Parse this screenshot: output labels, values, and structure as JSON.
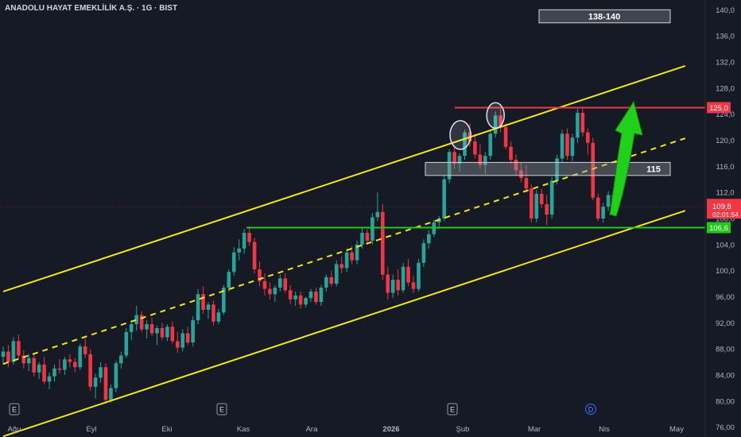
{
  "header": {
    "title": "ANADOLU HAYAT EMEKLİLİK A.Ş. · 1G · BIST"
  },
  "colors": {
    "background": "#161a25",
    "up": "#26a69a",
    "down": "#f23645",
    "channel": "#f5e616",
    "resistance": "#f23645",
    "support": "#22c81a",
    "arrow": "#21d01a",
    "box": "#d1d4dc",
    "axis_text": "#b2b5be"
  },
  "chart_data": {
    "type": "candlestick",
    "title": "ANADOLU HAYAT EMEKLİLİK A.Ş. · 1G · BIST",
    "y_axis": {
      "min": 74.5,
      "max": 141.5,
      "ticks": [
        "140,0",
        "136,0",
        "132,0",
        "128,0",
        "124,0",
        "120,0",
        "116,0",
        "112,0",
        "108,0",
        "104,0",
        "100,0",
        "96,00",
        "92,00",
        "88,00",
        "84,00",
        "80,00",
        "76,00"
      ]
    },
    "x_axis": {
      "ticks": [
        "Ağu",
        "Eyl",
        "Eki",
        "Kas",
        "Ara",
        "2026",
        "Şub",
        "Mar",
        "Nis",
        "May"
      ]
    },
    "event_markers": [
      "E",
      "E",
      "E",
      "D"
    ],
    "price_labels": {
      "resistance": "125,0",
      "current": "109,8",
      "countdown": "02:01:54",
      "support": "106,6"
    },
    "annotations": {
      "target_box": "138-140",
      "mid_box": "115"
    },
    "levels": {
      "resistance": 125.0,
      "support": 106.6,
      "current": 109.8,
      "mid_box_low": 114.6,
      "mid_box_high": 116.6,
      "target_low": 138.0,
      "target_high": 140.0
    },
    "channel": {
      "upper": [
        [
          0,
          96.8
        ],
        [
          133,
          131.4
        ]
      ],
      "lower": [
        [
          0,
          74.6
        ],
        [
          133,
          109.2
        ]
      ],
      "middle": [
        [
          0,
          85.7
        ],
        [
          133,
          120.3
        ]
      ]
    },
    "candles": [
      [
        0,
        86.8,
        88.4,
        85.6,
        87.6
      ],
      [
        1,
        87.6,
        88.6,
        85.2,
        86.0
      ],
      [
        2,
        86.0,
        89.8,
        85.6,
        89.2
      ],
      [
        3,
        89.2,
        90.2,
        86.4,
        87.0
      ],
      [
        4,
        87.0,
        87.8,
        85.0,
        85.8
      ],
      [
        5,
        85.8,
        87.2,
        84.6,
        86.6
      ],
      [
        6,
        86.6,
        87.4,
        83.8,
        84.4
      ],
      [
        7,
        84.4,
        86.0,
        83.4,
        85.6
      ],
      [
        8,
        85.6,
        86.8,
        82.6,
        83.0
      ],
      [
        9,
        83.0,
        84.4,
        81.8,
        83.8
      ],
      [
        10,
        83.8,
        85.6,
        83.0,
        85.0
      ],
      [
        11,
        85.0,
        86.4,
        84.2,
        84.8
      ],
      [
        12,
        84.8,
        86.8,
        84.0,
        86.4
      ],
      [
        13,
        86.4,
        87.2,
        85.2,
        86.0
      ],
      [
        14,
        86.0,
        86.6,
        84.4,
        85.2
      ],
      [
        15,
        85.2,
        88.8,
        84.8,
        88.4
      ],
      [
        16,
        88.4,
        89.6,
        86.6,
        87.2
      ],
      [
        17,
        87.2,
        88.0,
        81.6,
        82.2
      ],
      [
        18,
        82.2,
        84.2,
        80.4,
        83.6
      ],
      [
        19,
        83.6,
        86.0,
        82.8,
        85.2
      ],
      [
        20,
        85.2,
        85.8,
        79.6,
        80.2
      ],
      [
        21,
        80.2,
        82.6,
        79.8,
        82.0
      ],
      [
        22,
        82.0,
        86.2,
        81.4,
        85.8
      ],
      [
        23,
        85.8,
        87.6,
        85.0,
        87.0
      ],
      [
        24,
        87.0,
        91.2,
        86.6,
        90.6
      ],
      [
        25,
        90.6,
        92.4,
        89.4,
        91.8
      ],
      [
        26,
        91.8,
        94.6,
        90.8,
        93.2
      ],
      [
        27,
        93.2,
        93.8,
        90.6,
        91.0
      ],
      [
        28,
        91.0,
        92.4,
        89.6,
        91.8
      ],
      [
        29,
        91.8,
        92.8,
        90.0,
        90.4
      ],
      [
        30,
        90.4,
        91.6,
        88.6,
        91.2
      ],
      [
        31,
        91.2,
        92.0,
        89.4,
        89.8
      ],
      [
        32,
        89.8,
        91.8,
        89.2,
        91.4
      ],
      [
        33,
        91.4,
        92.2,
        88.8,
        89.2
      ],
      [
        34,
        89.2,
        90.6,
        87.4,
        88.2
      ],
      [
        35,
        88.2,
        91.0,
        87.6,
        90.4
      ],
      [
        36,
        90.4,
        91.4,
        88.6,
        89.0
      ],
      [
        37,
        89.0,
        93.0,
        88.4,
        92.4
      ],
      [
        38,
        92.4,
        97.2,
        91.8,
        96.4
      ],
      [
        39,
        96.4,
        97.6,
        93.4,
        94.0
      ],
      [
        40,
        94.0,
        95.2,
        92.6,
        94.8
      ],
      [
        41,
        94.8,
        95.4,
        91.6,
        92.2
      ],
      [
        42,
        92.2,
        94.2,
        91.8,
        93.6
      ],
      [
        43,
        93.6,
        97.8,
        93.2,
        97.4
      ],
      [
        44,
        97.4,
        100.2,
        96.8,
        99.8
      ],
      [
        45,
        99.8,
        103.6,
        99.2,
        102.8
      ],
      [
        46,
        102.8,
        104.8,
        101.6,
        103.4
      ],
      [
        47,
        103.4,
        106.4,
        102.6,
        105.8
      ],
      [
        48,
        105.8,
        106.8,
        103.8,
        104.4
      ],
      [
        49,
        104.4,
        105.0,
        99.6,
        100.2
      ],
      [
        50,
        100.2,
        101.4,
        97.6,
        98.4
      ],
      [
        51,
        98.4,
        99.6,
        96.2,
        97.2
      ],
      [
        52,
        97.2,
        98.2,
        95.6,
        96.4
      ],
      [
        53,
        96.4,
        97.8,
        95.2,
        97.4
      ],
      [
        54,
        97.4,
        99.4,
        96.8,
        98.8
      ],
      [
        55,
        98.8,
        99.6,
        96.6,
        97.0
      ],
      [
        56,
        97.0,
        97.8,
        94.8,
        95.6
      ],
      [
        57,
        95.6,
        96.8,
        94.6,
        96.2
      ],
      [
        58,
        96.2,
        96.8,
        94.2,
        94.8
      ],
      [
        59,
        94.8,
        96.0,
        94.4,
        95.8
      ],
      [
        60,
        95.8,
        97.2,
        95.2,
        96.8
      ],
      [
        61,
        96.8,
        97.4,
        94.8,
        95.2
      ],
      [
        62,
        95.2,
        97.8,
        94.6,
        97.4
      ],
      [
        63,
        97.4,
        99.4,
        96.8,
        99.0
      ],
      [
        64,
        99.0,
        100.0,
        97.6,
        98.0
      ],
      [
        65,
        98.0,
        101.6,
        97.6,
        101.0
      ],
      [
        66,
        101.0,
        102.2,
        99.6,
        100.4
      ],
      [
        67,
        100.4,
        103.4,
        99.8,
        102.8
      ],
      [
        68,
        102.8,
        103.8,
        101.0,
        101.6
      ],
      [
        69,
        101.6,
        104.6,
        101.0,
        104.0
      ],
      [
        70,
        104.0,
        106.6,
        103.4,
        105.8
      ],
      [
        71,
        105.8,
        106.4,
        104.2,
        104.6
      ],
      [
        72,
        104.6,
        108.8,
        104.0,
        108.2
      ],
      [
        73,
        108.2,
        112.0,
        107.6,
        109.0
      ],
      [
        74,
        109.0,
        110.2,
        98.6,
        99.4
      ],
      [
        75,
        99.4,
        100.6,
        95.6,
        96.6
      ],
      [
        76,
        96.6,
        99.4,
        95.8,
        98.6
      ],
      [
        77,
        98.6,
        100.2,
        96.2,
        97.0
      ],
      [
        78,
        97.0,
        101.2,
        96.6,
        100.6
      ],
      [
        79,
        100.6,
        101.8,
        97.6,
        98.2
      ],
      [
        80,
        98.2,
        99.2,
        96.6,
        97.2
      ],
      [
        81,
        97.2,
        101.8,
        96.8,
        101.2
      ],
      [
        82,
        101.2,
        104.8,
        100.6,
        104.2
      ],
      [
        83,
        104.2,
        106.2,
        103.4,
        105.6
      ],
      [
        84,
        105.6,
        107.8,
        105.2,
        107.4
      ],
      [
        85,
        107.4,
        108.4,
        106.4,
        108.0
      ],
      [
        86,
        108.0,
        114.6,
        107.6,
        114.0
      ],
      [
        87,
        114.0,
        118.6,
        113.4,
        118.2
      ],
      [
        88,
        118.2,
        119.2,
        115.6,
        116.4
      ],
      [
        89,
        116.4,
        118.0,
        115.2,
        117.6
      ],
      [
        90,
        117.6,
        121.6,
        117.0,
        121.2
      ],
      [
        91,
        121.2,
        122.6,
        119.0,
        119.8
      ],
      [
        92,
        119.8,
        121.0,
        117.2,
        117.8
      ],
      [
        93,
        117.8,
        119.4,
        115.6,
        116.2
      ],
      [
        94,
        116.2,
        118.2,
        114.8,
        117.6
      ],
      [
        95,
        117.6,
        121.4,
        117.0,
        121.0
      ],
      [
        96,
        121.0,
        124.4,
        120.4,
        123.8
      ],
      [
        97,
        123.8,
        124.8,
        121.2,
        122.0
      ],
      [
        98,
        122.0,
        122.6,
        118.6,
        119.0
      ],
      [
        99,
        119.0,
        119.8,
        116.4,
        117.0
      ],
      [
        100,
        117.0,
        117.8,
        114.6,
        115.4
      ],
      [
        101,
        115.4,
        116.6,
        113.6,
        114.2
      ],
      [
        102,
        114.2,
        116.2,
        112.0,
        112.6
      ],
      [
        103,
        112.6,
        113.2,
        107.4,
        108.0
      ],
      [
        104,
        108.0,
        112.4,
        107.4,
        111.8
      ],
      [
        105,
        111.8,
        112.6,
        109.6,
        110.2
      ],
      [
        106,
        110.2,
        111.6,
        107.0,
        108.6
      ],
      [
        107,
        108.6,
        114.4,
        108.0,
        113.8
      ],
      [
        108,
        113.8,
        117.8,
        113.2,
        117.2
      ],
      [
        109,
        117.2,
        121.6,
        116.6,
        121.0
      ],
      [
        110,
        121.0,
        121.8,
        117.0,
        117.6
      ],
      [
        111,
        117.6,
        121.0,
        116.8,
        120.4
      ],
      [
        112,
        120.4,
        124.8,
        119.6,
        124.2
      ],
      [
        113,
        124.2,
        125.0,
        120.6,
        121.2
      ],
      [
        114,
        121.2,
        121.8,
        117.8,
        119.6
      ],
      [
        115,
        119.6,
        120.4,
        110.8,
        111.2
      ],
      [
        116,
        111.2,
        111.8,
        107.6,
        108.0
      ],
      [
        117,
        108.0,
        110.4,
        107.4,
        109.8
      ],
      [
        118,
        109.8,
        112.2,
        109.2,
        111.6
      ],
      [
        119,
        111.6,
        112.4,
        109.2,
        109.8
      ]
    ]
  }
}
